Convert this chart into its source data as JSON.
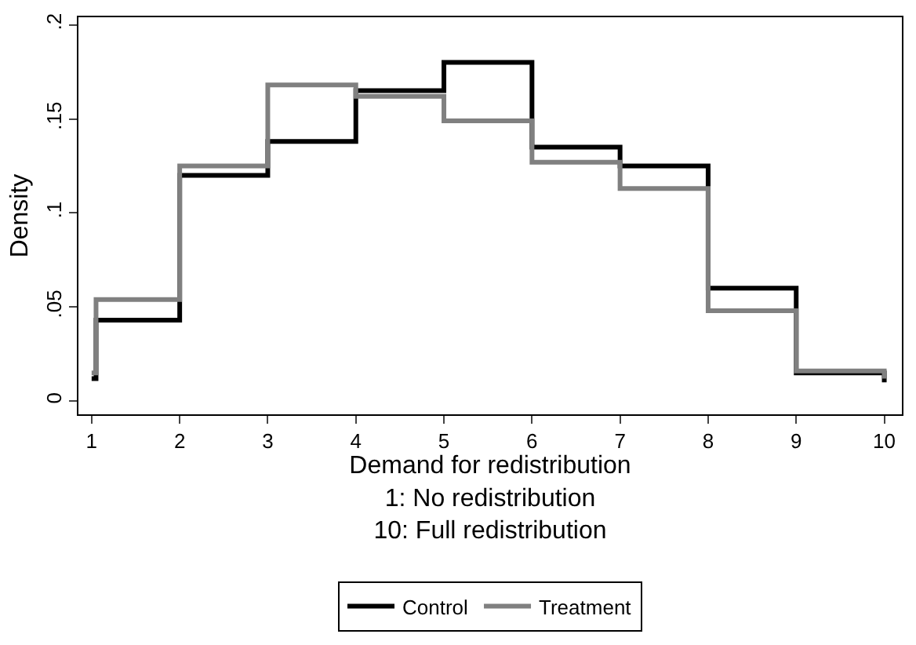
{
  "chart_data": {
    "type": "step",
    "xlabel": "Demand for redistribution\n1: No redistribution\n10: Full redistribution",
    "ylabel": "Density",
    "series": [
      {
        "name": "Control",
        "color": "#000000",
        "x": [
          1,
          1.05,
          2,
          3,
          4,
          5,
          6,
          7,
          8,
          9,
          10
        ],
        "values": [
          0.012,
          0.043,
          0.12,
          0.138,
          0.165,
          0.18,
          0.135,
          0.125,
          0.06,
          0.015,
          0.01
        ]
      },
      {
        "name": "Treatment",
        "color": "#808080",
        "x": [
          1,
          1.05,
          2,
          3,
          4,
          5,
          6,
          7,
          8,
          9,
          10
        ],
        "values": [
          0.015,
          0.054,
          0.125,
          0.168,
          0.162,
          0.149,
          0.127,
          0.113,
          0.048,
          0.016,
          0.012
        ]
      }
    ],
    "xlim": [
      0.85,
      10.2
    ],
    "ylim": [
      -0.007,
      0.204
    ],
    "xticks": [
      1,
      2,
      3,
      4,
      5,
      6,
      7,
      8,
      9,
      10
    ],
    "yticks": [
      {
        "value": 0,
        "label": "0"
      },
      {
        "value": 0.05,
        "label": ".05"
      },
      {
        "value": 0.1,
        "label": ".1"
      },
      {
        "value": 0.15,
        "label": ".15"
      },
      {
        "value": 0.2,
        "label": ".2"
      }
    ],
    "legend": "bottom",
    "line_style": "solid",
    "marker": "none"
  }
}
